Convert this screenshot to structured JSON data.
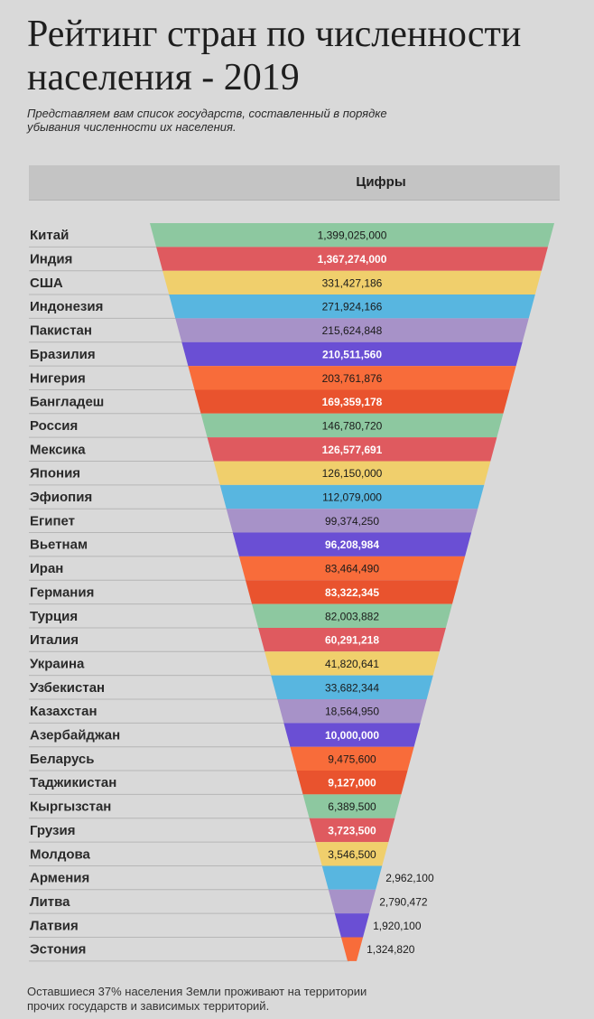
{
  "title": "Рейтинг стран по численности населения - 2019",
  "subtitle": "Представляем вам список государств, составленный в порядке убывания численности их населения.",
  "column_header": "Цифры",
  "footnote": "Оставшиеся 37% населения Земли проживают на территории прочих государств и зависимых территорий.",
  "colors": [
    "#8dc8a0",
    "#df5a5f",
    "#f0cf6c",
    "#58b6e0",
    "#a792c8",
    "#6a4fd4",
    "#f86c3a",
    "#e9532e"
  ],
  "chart_data": {
    "type": "bar",
    "orientation": "funnel",
    "title": "Рейтинг стран по численности населения - 2019",
    "column_header": "Цифры",
    "categories": [
      "Китай",
      "Индия",
      "США",
      "Индонезия",
      "Пакистан",
      "Бразилия",
      "Нигерия",
      "Бангладеш",
      "Россия",
      "Мексика",
      "Япония",
      "Эфиопия",
      "Египет",
      "Вьетнам",
      "Иран",
      "Германия",
      "Турция",
      "Италия",
      "Украина",
      "Узбекистан",
      "Казахстан",
      "Азербайджан",
      "Беларусь",
      "Таджикистан",
      "Кыргызстан",
      "Грузия",
      "Молдова",
      "Армения",
      "Литва",
      "Латвия",
      "Эстония"
    ],
    "values": [
      1399025000,
      1367274000,
      331427186,
      271924166,
      215624848,
      210511560,
      203761876,
      169359178,
      146780720,
      126577691,
      126150000,
      112079000,
      99374250,
      96208984,
      83464490,
      83322345,
      82003882,
      60291218,
      41820641,
      33682344,
      18564950,
      10000000,
      9475600,
      9127000,
      6389500,
      3723500,
      3546500,
      2962100,
      2790472,
      1920100,
      1324820
    ],
    "value_labels": [
      "1,399,025,000",
      "1,367,274,000",
      "331,427,186",
      "271,924,166",
      "215,624,848",
      "210,511,560",
      "203,761,876",
      "169,359,178",
      "146,780,720",
      "126,577,691",
      "126,150,000",
      "112,079,000",
      "99,374,250",
      "96,208,984",
      "83,464,490",
      "83,322,345",
      "82,003,882",
      "60,291,218",
      "41,820,641",
      "33,682,344",
      "18,564,950",
      "10,000,000",
      "9,475,600",
      "9,127,000",
      "6,389,500",
      "3,723,500",
      "3,546,500",
      "2,962,100",
      "2,790,472",
      "1,920,100",
      "1,324,820"
    ],
    "label_color": [
      "dark",
      "light",
      "dark",
      "dark",
      "dark",
      "light",
      "dark",
      "light",
      "dark",
      "light",
      "dark",
      "dark",
      "dark",
      "light",
      "dark",
      "light",
      "dark",
      "light",
      "dark",
      "dark",
      "dark",
      "light",
      "dark",
      "light",
      "dark",
      "light",
      "dark",
      "dark",
      "dark",
      "dark",
      "dark"
    ]
  }
}
